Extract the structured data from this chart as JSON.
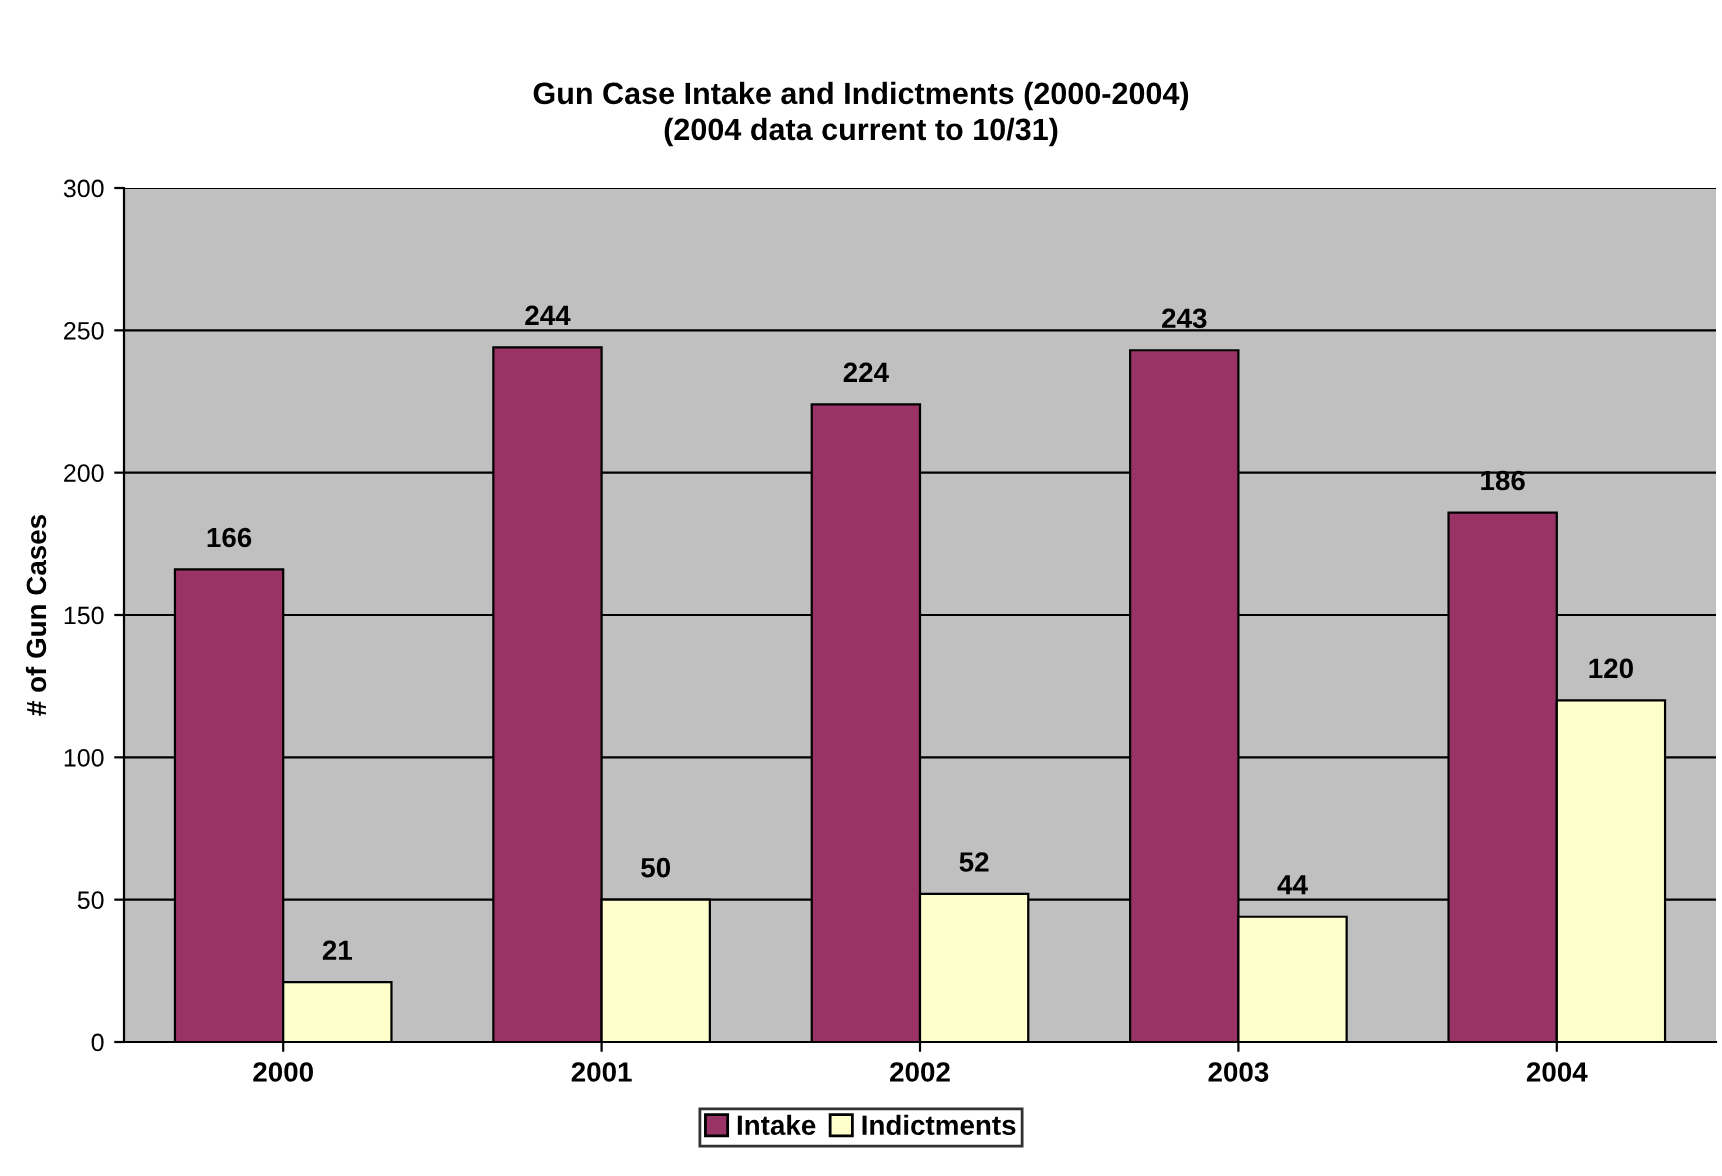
{
  "chart_data": {
    "type": "bar",
    "title": "Gun Case Intake and Indictments (2000-2004)",
    "subtitle": "(2004 data current to 10/31)",
    "ylabel": "# of Gun Cases",
    "categories": [
      "2000",
      "2001",
      "2002",
      "2003",
      "2004"
    ],
    "series": [
      {
        "name": "Intake",
        "color": "#993366",
        "values": [
          166,
          244,
          224,
          243,
          186
        ]
      },
      {
        "name": "Indictments",
        "color": "#ffffcc",
        "values": [
          21,
          50,
          52,
          44,
          120
        ]
      }
    ],
    "ylim": [
      0,
      300
    ],
    "yticks": [
      0,
      50,
      100,
      150,
      200,
      250,
      300
    ],
    "grid": "y",
    "legend": "bottom",
    "data_labels": true
  }
}
